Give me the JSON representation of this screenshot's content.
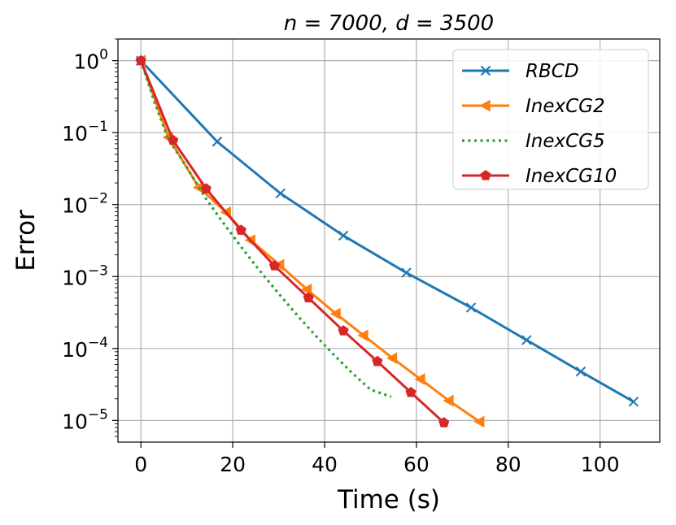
{
  "chart_data": {
    "type": "line",
    "title": "n = 7000, d = 3500",
    "xlabel": "Time (s)",
    "ylabel": "Error",
    "xlim": [
      -5,
      113
    ],
    "ylim": [
      5e-06,
      2
    ],
    "yscale": "log",
    "grid": true,
    "legend_position": "top-right",
    "xticks": [
      0,
      20,
      40,
      60,
      80,
      100
    ],
    "xtick_labels": [
      "0",
      "20",
      "40",
      "60",
      "80",
      "100"
    ],
    "yticks": [
      1,
      0.1,
      0.01,
      0.001,
      0.0001,
      1e-05
    ],
    "ytick_labels": [
      {
        "base": "10",
        "exp": "0"
      },
      {
        "base": "10",
        "exp": "−1"
      },
      {
        "base": "10",
        "exp": "−2"
      },
      {
        "base": "10",
        "exp": "−3"
      },
      {
        "base": "10",
        "exp": "−4"
      },
      {
        "base": "10",
        "exp": "−5"
      }
    ],
    "series": [
      {
        "name": "RBCD",
        "color": "#1f77b4",
        "marker": "x",
        "linestyle": "solid",
        "x": [
          0,
          16.6,
          30.4,
          44.1,
          57.8,
          71.9,
          84.0,
          95.8,
          107.3
        ],
        "y": [
          1.0,
          0.075,
          0.0143,
          0.0037,
          0.00113,
          0.00037,
          0.000131,
          4.78e-05,
          1.82e-05
        ]
      },
      {
        "name": "InexCG2",
        "color": "#ff7f0e",
        "marker": "triangle-left",
        "linestyle": "solid",
        "x": [
          0,
          6.0,
          12.6,
          18.6,
          23.9,
          30.2,
          36.2,
          42.5,
          48.5,
          54.8,
          60.9,
          67.1,
          73.8
        ],
        "y": [
          1.0,
          0.086,
          0.0173,
          0.0078,
          0.0032,
          0.00145,
          0.00066,
          0.000304,
          0.000152,
          7.34e-05,
          3.75e-05,
          1.88e-05,
          9.6e-06
        ]
      },
      {
        "name": "InexCG5",
        "color": "#2ca02c",
        "marker": "none",
        "linestyle": "dotted",
        "x": [
          0,
          3,
          6,
          10,
          14,
          18,
          22,
          26,
          30,
          34,
          38,
          42,
          46,
          50,
          54.5
        ],
        "y": [
          1.0,
          0.26,
          0.081,
          0.033,
          0.0125,
          0.0055,
          0.0025,
          0.00118,
          0.00058,
          0.000292,
          0.000152,
          8.2e-05,
          4.57e-05,
          2.68e-05,
          2.14e-05
        ]
      },
      {
        "name": "InexCG10",
        "color": "#d62728",
        "marker": "pentagon",
        "linestyle": "solid",
        "x": [
          0,
          7.0,
          14.2,
          21.8,
          29.1,
          36.5,
          44.1,
          51.5,
          58.8,
          66.0
        ],
        "y": [
          1.0,
          0.078,
          0.0166,
          0.0044,
          0.00141,
          0.000505,
          0.000176,
          6.61e-05,
          2.45e-05,
          9.3e-06
        ]
      }
    ]
  }
}
